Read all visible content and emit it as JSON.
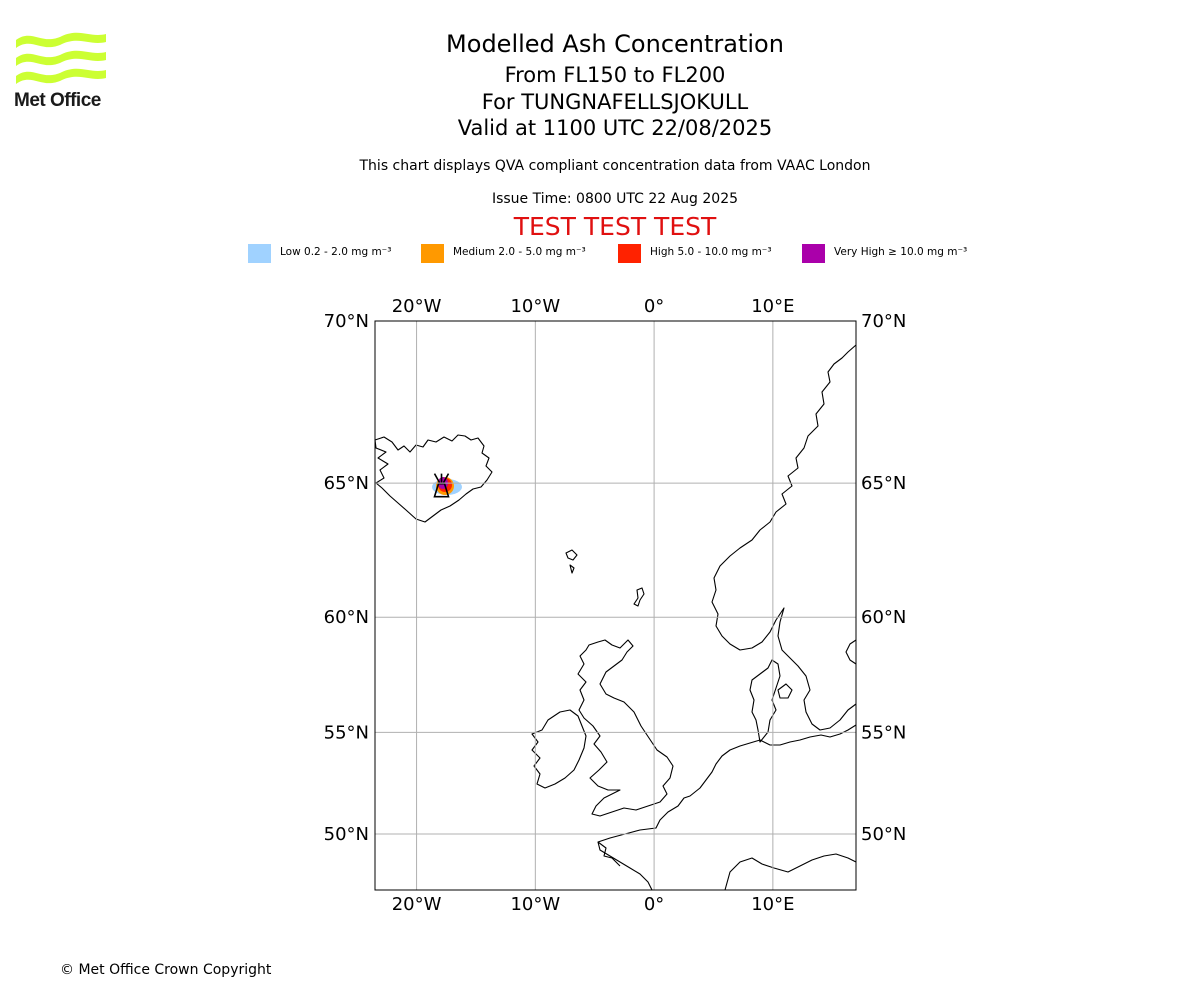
{
  "logo": {
    "text": "Met Office",
    "color": "#ccff33"
  },
  "title": {
    "line1": "Modelled Ash Concentration",
    "line2": "From FL150 to FL200",
    "line3": "For TUNGNAFELLSJOKULL",
    "line4": "Valid at 1100 UTC 22/08/2025"
  },
  "subtitle": "This chart displays QVA compliant concentration data from VAAC London",
  "issue_time": "Issue Time: 0800 UTC 22 Aug 2025",
  "test_banner": {
    "text": "TEST TEST TEST",
    "color": "#e01010"
  },
  "legend": [
    {
      "label": "Low 0.2 - 2.0 mg m⁻³",
      "color": "#a0d2ff"
    },
    {
      "label": "Medium 2.0 - 5.0 mg m⁻³",
      "color": "#ff9900"
    },
    {
      "label": "High 5.0 - 10.0 mg m⁻³",
      "color": "#ff2200"
    },
    {
      "label": "Very High ≥ 10.0 mg m⁻³",
      "color": "#aa00aa"
    }
  ],
  "map": {
    "lon_range": [
      -23.5,
      17
    ],
    "lat_range": [
      47,
      70
    ],
    "lon_ticks": [
      {
        "value": -20,
        "label": "20°W"
      },
      {
        "value": -10,
        "label": "10°W"
      },
      {
        "value": 0,
        "label": "0°"
      },
      {
        "value": 10,
        "label": "10°E"
      }
    ],
    "lat_ticks": [
      {
        "value": 70,
        "label": "70°N"
      },
      {
        "value": 65,
        "label": "65°N"
      },
      {
        "value": 60,
        "label": "60°N"
      },
      {
        "value": 55,
        "label": "55°N"
      },
      {
        "value": 50,
        "label": "50°N"
      }
    ],
    "gridlines": true,
    "volcano": {
      "name": "TUNGNAFELLSJOKULL",
      "lon": -17.9,
      "lat": 64.74,
      "icon": "volcano-icon"
    }
  },
  "copyright": "© Met Office Crown Copyright"
}
